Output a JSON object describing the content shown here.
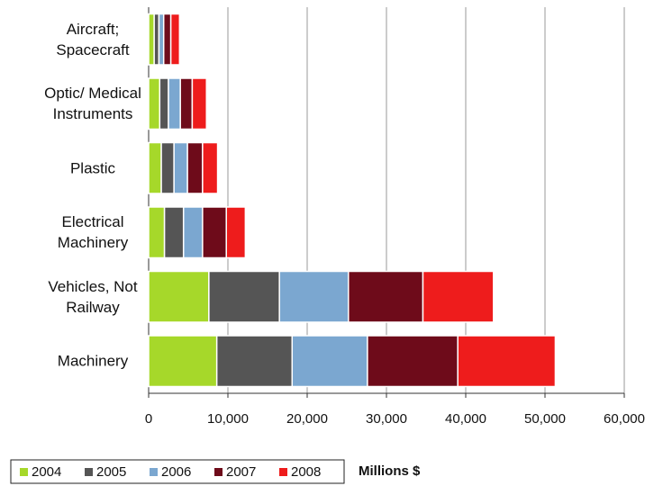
{
  "chart_data": {
    "type": "stacked-bar-horizontal",
    "categories": [
      "Aircraft; Spacecraft",
      "Optic/ Medical Instruments",
      "Plastic",
      "Electrical Machinery",
      "Vehicles, Not Railway",
      "Machinery"
    ],
    "series": [
      {
        "name": "2004",
        "color": "#a6d82a",
        "values": [
          700,
          1400,
          1600,
          2000,
          7600,
          8600
        ]
      },
      {
        "name": "2005",
        "color": "#555555",
        "values": [
          600,
          1100,
          1600,
          2400,
          8900,
          9500
        ]
      },
      {
        "name": "2006",
        "color": "#7ba7d0",
        "values": [
          600,
          1500,
          1700,
          2400,
          8700,
          9500
        ]
      },
      {
        "name": "2007",
        "color": "#6e0b1a",
        "values": [
          900,
          1500,
          1900,
          3000,
          9400,
          11400
        ]
      },
      {
        "name": "2008",
        "color": "#ee1c1c",
        "values": [
          1100,
          1800,
          1900,
          2400,
          8900,
          12300
        ]
      }
    ],
    "xlabel": "Millions $",
    "xlim": [
      0,
      60000
    ],
    "xticks": [
      0,
      {
        "value": 10000,
        "label": "10,000"
      },
      {
        "value": 20000,
        "label": "20,000"
      },
      {
        "value": 30000,
        "label": "30,000"
      },
      {
        "value": 40000,
        "label": "40,000"
      },
      {
        "value": 50000,
        "label": "50,000"
      },
      {
        "value": 60000,
        "label": "60,000"
      }
    ],
    "grid": true,
    "legend": "bottom-left"
  }
}
